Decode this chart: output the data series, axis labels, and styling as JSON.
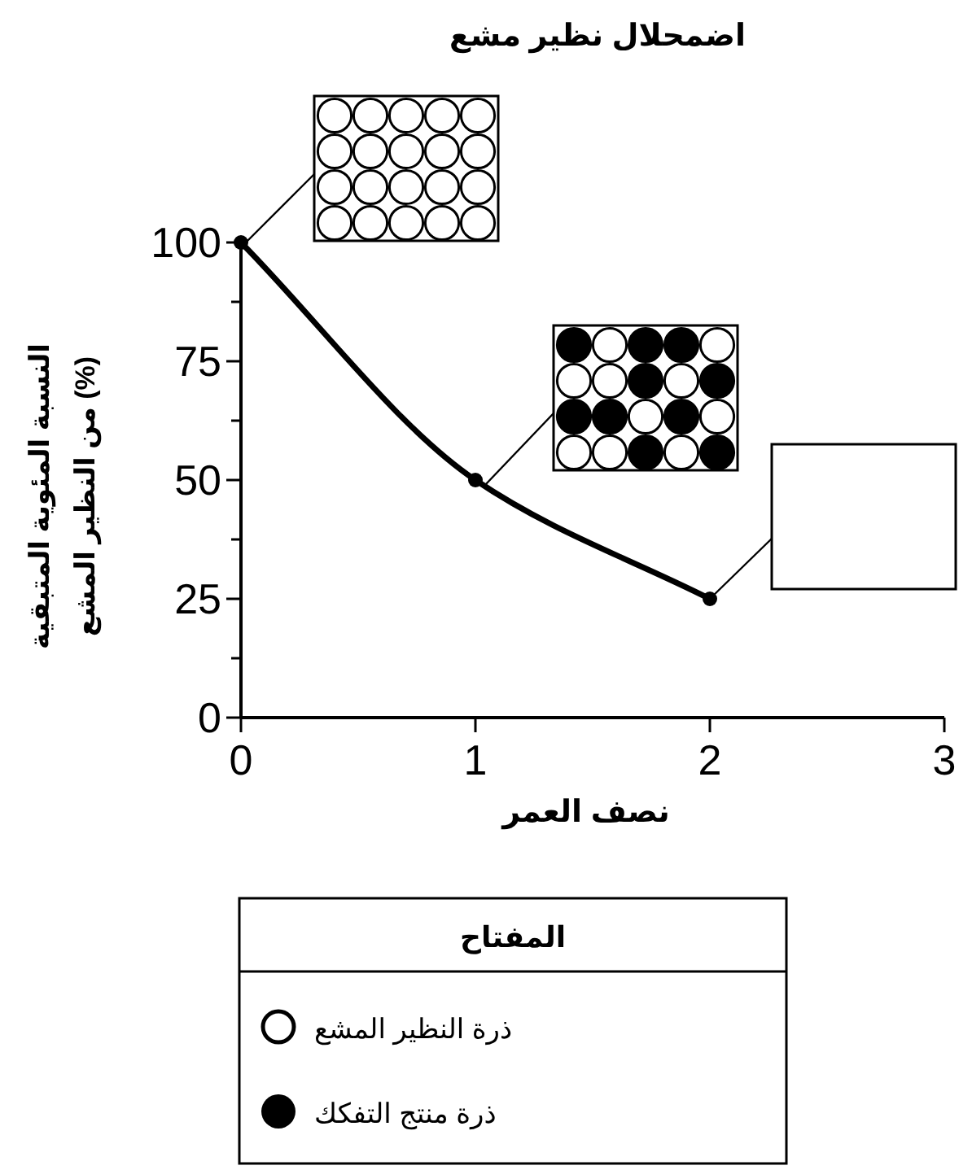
{
  "chart_data": {
    "type": "line",
    "title": "اضمحلال نظير مشع",
    "xlabel": "نصف العمر",
    "ylabel": "النسبة المئوية المتبقية\nمن النظير المشع (%)",
    "x": [
      0,
      1,
      2
    ],
    "series": [
      {
        "color": "#000000",
        "values": [
          100,
          50,
          25
        ]
      }
    ],
    "xlim": [
      0,
      3
    ],
    "xticks": [
      0,
      1,
      2,
      3
    ],
    "ylim": [
      0,
      100
    ],
    "yticks": [
      0,
      {
        "value": 12.5,
        "label": null
      },
      25,
      {
        "value": 37.5,
        "label": null
      },
      50,
      {
        "value": 62.5,
        "label": null
      },
      75,
      {
        "value": 87.5,
        "label": null
      },
      100
    ],
    "marker": "circle",
    "line_style": "solid",
    "grid": false,
    "annotations": [
      "المفتاح",
      "ذرة النظير المشع",
      "ذرة منتج التفكك"
    ]
  }
}
